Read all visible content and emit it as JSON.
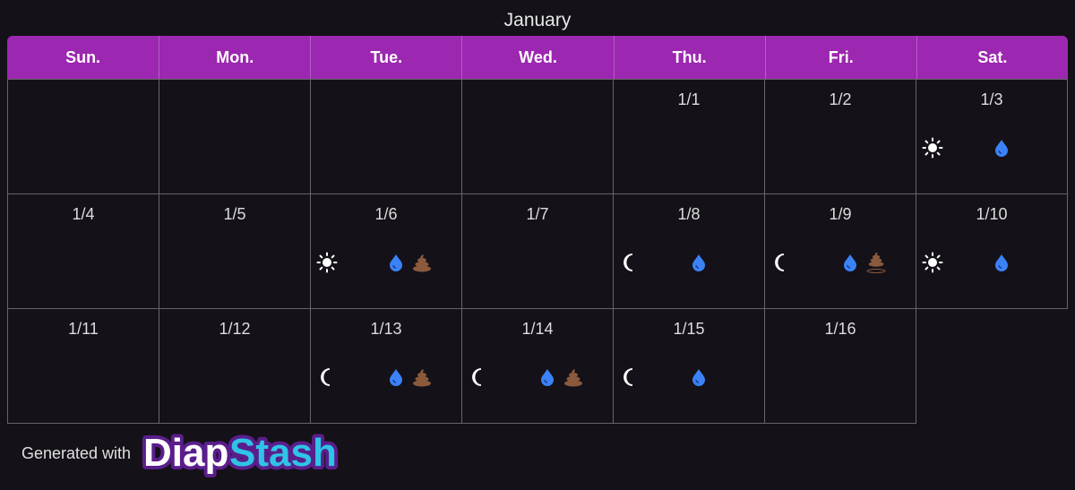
{
  "title": "January",
  "weekdays": [
    "Sun.",
    "Mon.",
    "Tue.",
    "Wed.",
    "Thu.",
    "Fri.",
    "Sat."
  ],
  "weeks": [
    [
      null,
      null,
      null,
      null,
      "1/1",
      "1/2",
      "1/3"
    ],
    [
      "1/4",
      "1/5",
      "1/6",
      "1/7",
      "1/8",
      "1/9",
      "1/10"
    ],
    [
      "1/11",
      "1/12",
      "1/13",
      "1/14",
      "1/15",
      "1/16"
    ]
  ],
  "footer": {
    "text": "Generated with",
    "logo": [
      "Diap",
      "Stash"
    ]
  }
}
